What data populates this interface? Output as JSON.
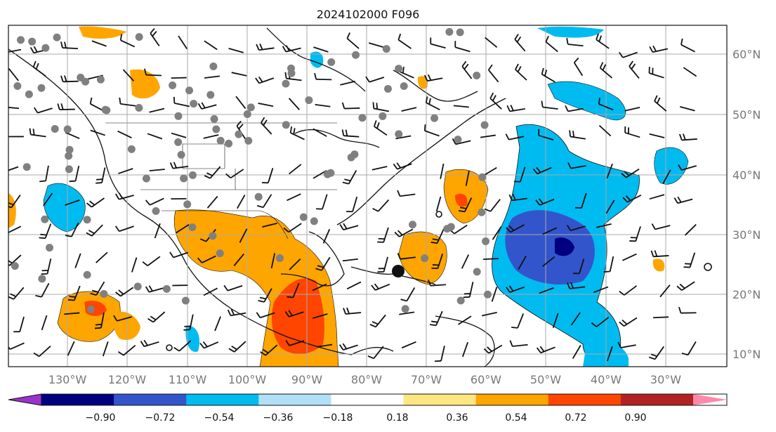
{
  "title": "2024102000 F096",
  "map": {
    "lon_labels": [
      "130°W",
      "120°W",
      "110°W",
      "100°W",
      "90°W",
      "80°W",
      "70°W",
      "60°W",
      "50°W",
      "40°W",
      "30°W"
    ],
    "lat_labels": [
      "60°N",
      "50°N",
      "40°N",
      "30°N",
      "20°N",
      "10°N"
    ],
    "grid": true
  },
  "colorbar": {
    "ticks": [
      "−0.90",
      "−0.72",
      "−0.54",
      "−0.36",
      "−0.18",
      "0.18",
      "0.36",
      "0.54",
      "0.72",
      "0.90"
    ],
    "colors": [
      "#9933cc",
      "#000080",
      "#3355cc",
      "#00bbf0",
      "#b0e0f8",
      "#ffffff",
      "#ffe680",
      "#ffa500",
      "#ff4500",
      "#b22222",
      "#ff88aa"
    ],
    "extend": "both"
  },
  "layers": {
    "positive_anomaly_colors": [
      "#ffa500",
      "#ff4500"
    ],
    "negative_anomaly_colors": [
      "#00bbf0",
      "#3355cc",
      "#000080"
    ],
    "station_marker_color": "#808080",
    "wind_barbs": true
  }
}
